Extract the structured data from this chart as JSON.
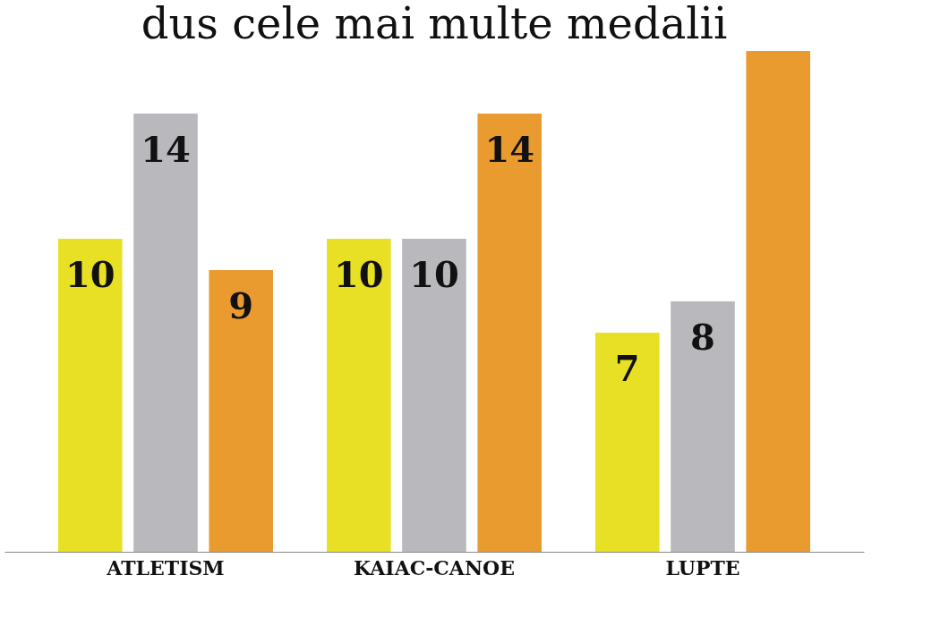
{
  "chart_data": {
    "type": "bar",
    "title": "dus cele mai  multe medalii",
    "categories": [
      "ATLETISM",
      "KAIAC-CANOE",
      "LUPTE"
    ],
    "series": [
      {
        "color": "#e8e024",
        "values": [
          10,
          10,
          7
        ],
        "value_labels": [
          "10",
          "10",
          "7"
        ]
      },
      {
        "color": "#b9b9bd",
        "values": [
          14,
          10,
          8
        ],
        "value_labels": [
          "14",
          "10",
          "8"
        ]
      },
      {
        "color": "#e99b2f",
        "values": [
          9,
          14,
          16
        ],
        "value_labels": [
          "9",
          "14",
          null
        ]
      }
    ],
    "grid": false,
    "legend": false
  }
}
